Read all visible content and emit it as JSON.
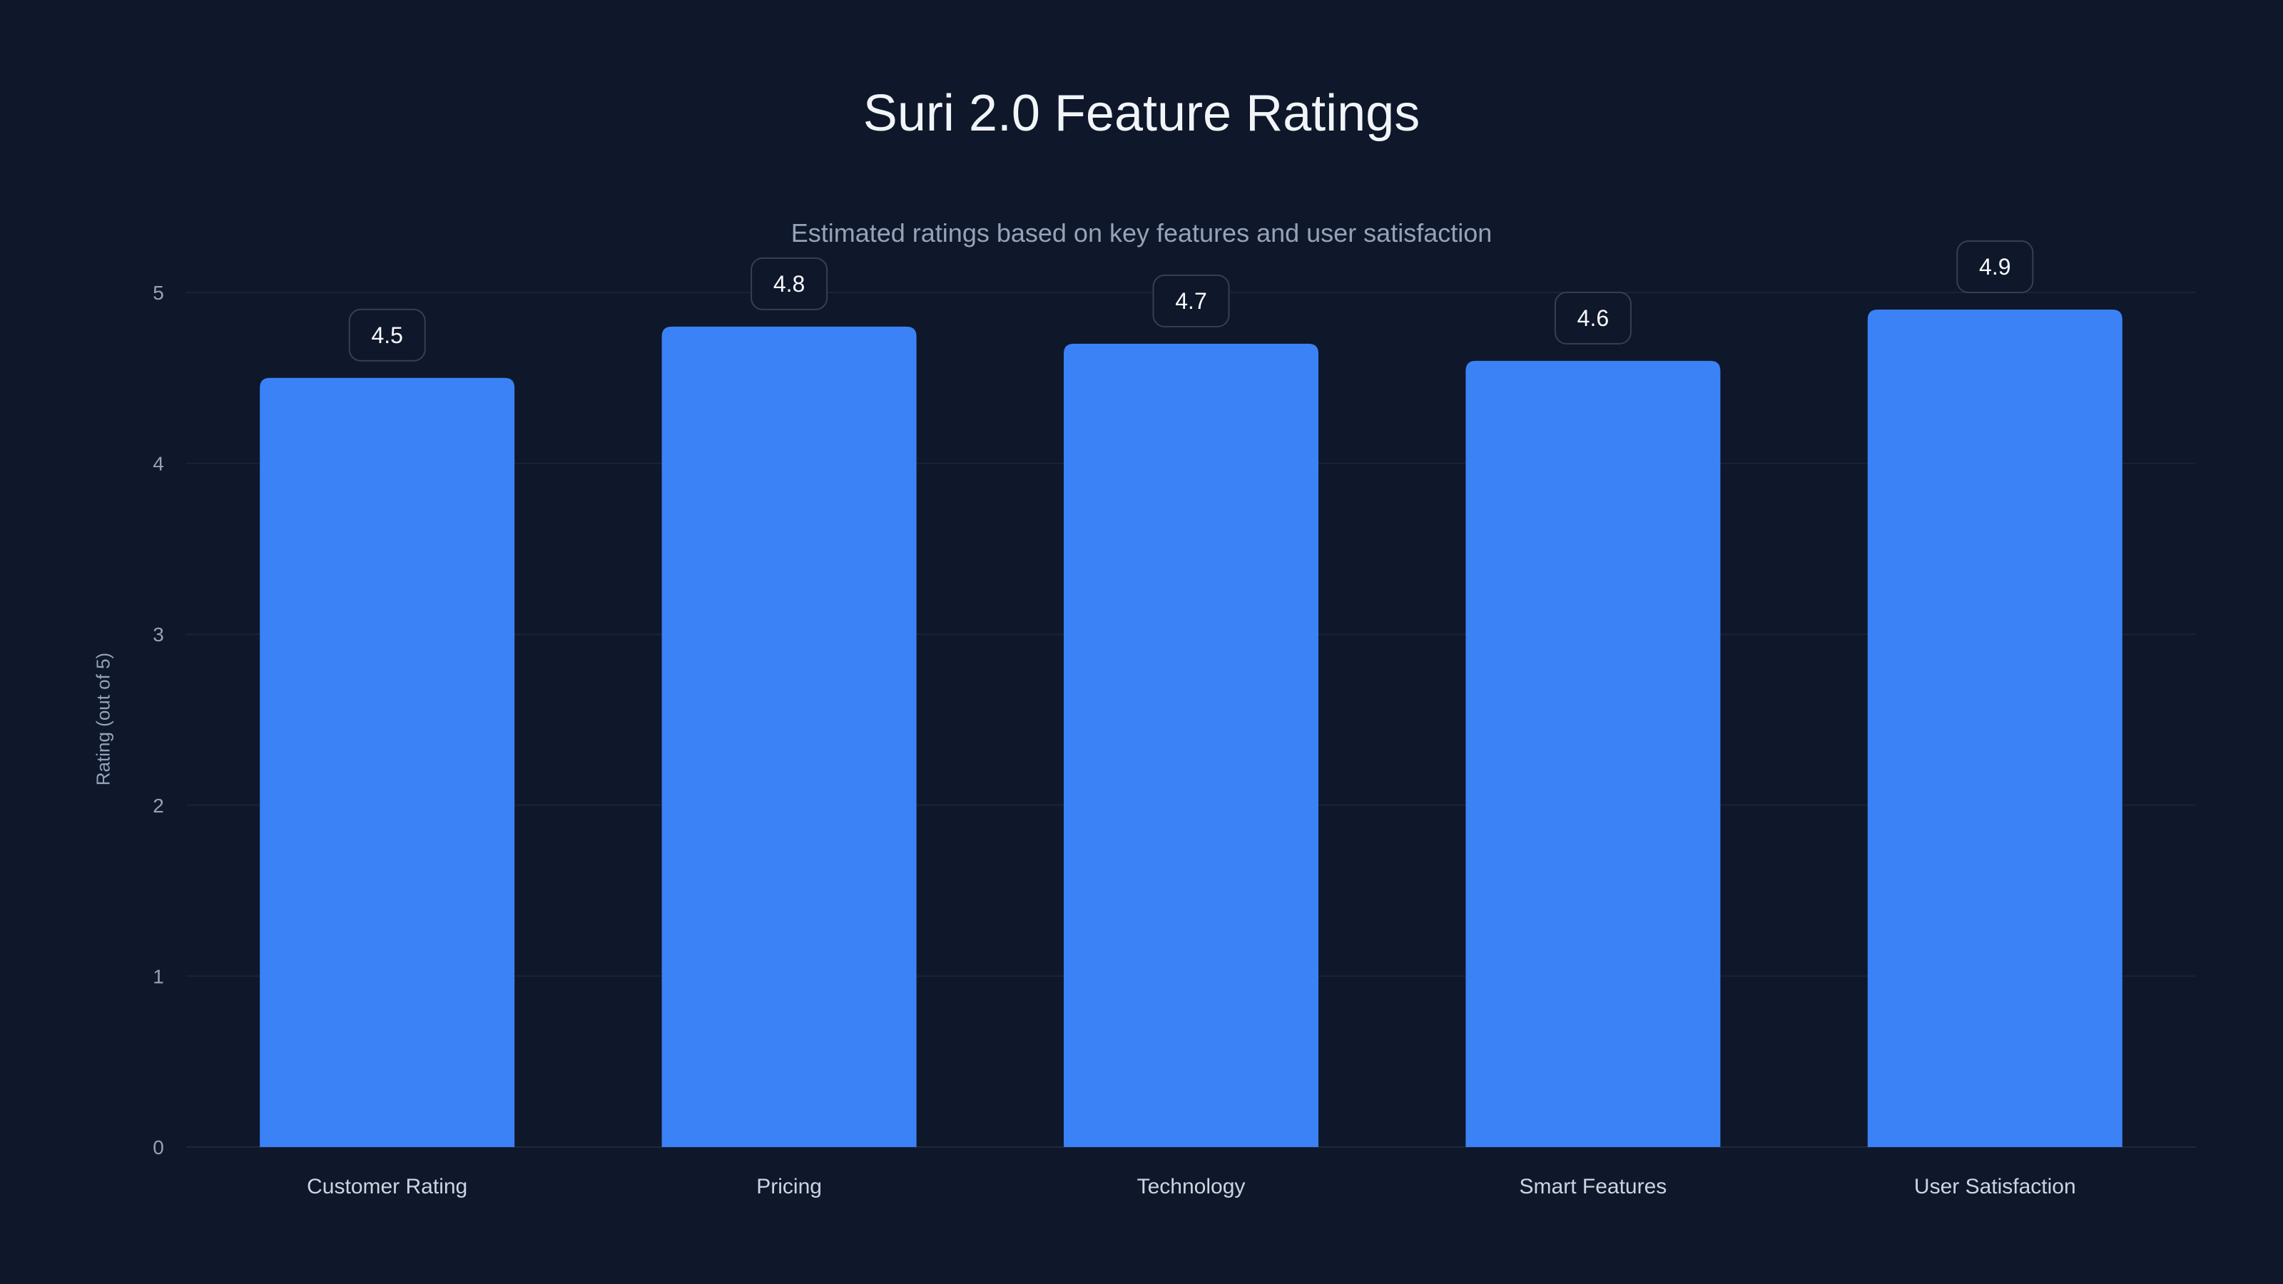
{
  "chart_data": {
    "type": "bar",
    "title": "Suri 2.0 Feature Ratings",
    "subtitle": "Estimated ratings based on key features and user satisfaction",
    "xlabel": "",
    "ylabel": "Rating (out of 5)",
    "categories": [
      "Customer Rating",
      "Pricing",
      "Technology",
      "Smart Features",
      "User Satisfaction"
    ],
    "values": [
      4.5,
      4.8,
      4.7,
      4.6,
      4.9
    ],
    "value_labels": [
      "4.5",
      "4.8",
      "4.7",
      "4.6",
      "4.9"
    ],
    "ylim": [
      0,
      5
    ],
    "yticks": [
      0,
      1,
      2,
      3,
      4,
      5
    ],
    "grid": true,
    "legend": "none",
    "colors": {
      "bar": "#3b82f6",
      "background": "#0f172a",
      "grid": "#1e293b"
    }
  }
}
